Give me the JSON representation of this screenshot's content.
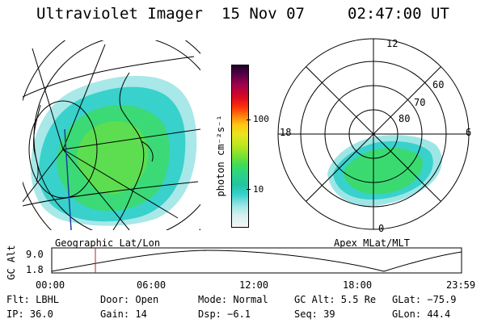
{
  "header": {
    "instrument": "Ultraviolet Imager",
    "date": "15 Nov 07",
    "time": "02:47:00 UT"
  },
  "colorbar": {
    "label": "photon cm⁻²s⁻¹",
    "ticks": [
      "100",
      "10"
    ],
    "colors": [
      "#f4f4f4",
      "#d8f0f0",
      "#9ee6e6",
      "#39d1cc",
      "#22c4a0",
      "#2ad28a",
      "#3cdc5a",
      "#7ae032",
      "#b8e61e",
      "#e6e61e",
      "#ffc814",
      "#ff8c0a",
      "#ff320a",
      "#dc0a1e",
      "#a0004b",
      "#5a0046",
      "#1e002d"
    ]
  },
  "left_map": {
    "caption": "Geographic Lat/Lon"
  },
  "right_map": {
    "caption": "Apex  MLat/MLT",
    "mlt_labels": [
      "12",
      "18",
      "6",
      "0"
    ],
    "lat_labels": [
      "60",
      "70",
      "80"
    ]
  },
  "altitude_plot": {
    "ylabel": "GC Alt",
    "yticks": [
      "9.0",
      "1.8"
    ],
    "xticks": [
      "00:00",
      "06:00",
      "12:00",
      "18:00",
      "23:59"
    ],
    "marker_time": "02:47"
  },
  "status": {
    "row1": {
      "filter": "Flt: LBHL",
      "door": "Door: Open",
      "mode": "Mode: Normal",
      "gc_alt": "GC Alt: 5.5 Re",
      "glat": "GLat: −75.9"
    },
    "row2": {
      "ip": "IP: 36.0",
      "gain": "Gain: 14",
      "dsp": "Dsp:   −6.1",
      "seq": "Seq: 39",
      "glon": "GLon:  44.4"
    }
  }
}
